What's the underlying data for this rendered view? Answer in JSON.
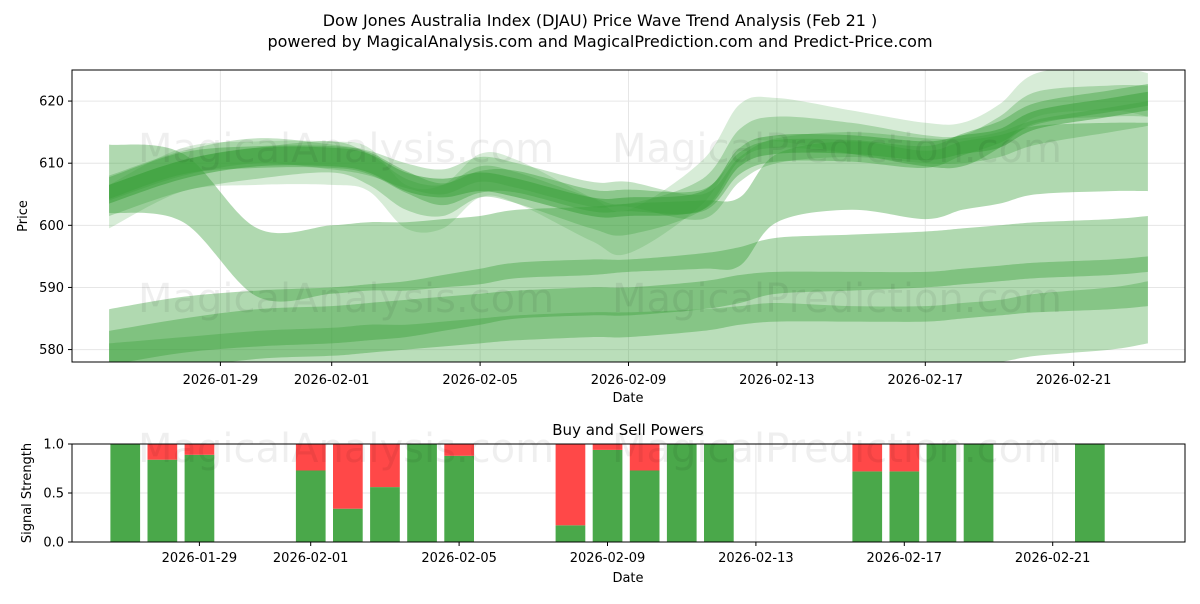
{
  "header": {
    "title_line1": "Dow Jones Australia Index (DJAU) Price Wave Trend Analysis (Feb 21 )",
    "title_line2": "powered by MagicalAnalysis.com and MagicalPrediction.com and Predict-Price.com"
  },
  "watermark": {
    "left": "MagicalAnalysis.com",
    "right": "MagicalPrediction.com"
  },
  "colors": {
    "green": "#4aa84a",
    "red": "#ff4848",
    "band": "#39a039"
  },
  "chart_data": [
    {
      "type": "area",
      "name": "price-wave-chart",
      "xlabel": "Date",
      "ylabel": "Price",
      "ylim": [
        578,
        625
      ],
      "xlim": [
        "2026-01-25",
        "2026-02-24"
      ],
      "grid": true,
      "x_ticks": [
        "2026-01-29",
        "2026-02-01",
        "2026-02-05",
        "2026-02-09",
        "2026-02-13",
        "2026-02-17",
        "2026-02-21"
      ],
      "y_ticks": [
        580,
        590,
        600,
        610,
        620
      ],
      "dates": [
        "2026-01-26",
        "2026-01-28",
        "2026-01-30",
        "2026-02-01",
        "2026-02-02",
        "2026-02-03",
        "2026-02-04",
        "2026-02-05",
        "2026-02-06",
        "2026-02-08",
        "2026-02-09",
        "2026-02-11",
        "2026-02-12",
        "2026-02-13",
        "2026-02-15",
        "2026-02-17",
        "2026-02-18",
        "2026-02-19",
        "2026-02-20",
        "2026-02-22",
        "2026-02-23"
      ],
      "bands": [
        {
          "name": "wave-1",
          "center": [
            605,
            609,
            611,
            611,
            610,
            607,
            606,
            607,
            606,
            603,
            603,
            604,
            611,
            613,
            613,
            612,
            613,
            614,
            617,
            619,
            620
          ],
          "width": 3.0,
          "opacity": 0.5
        },
        {
          "name": "wave-2",
          "center": [
            606,
            610,
            611,
            611,
            610,
            607,
            605,
            607,
            607,
            604,
            604,
            604,
            610,
            612,
            612,
            611,
            613,
            615,
            618,
            620,
            621
          ],
          "width": 3.5,
          "opacity": 0.4
        },
        {
          "name": "wave-3",
          "center": [
            604,
            608,
            610,
            611,
            609,
            605,
            604,
            607,
            606,
            602,
            601,
            605,
            613,
            615,
            614,
            612,
            612,
            615,
            619,
            620,
            620
          ],
          "width": 5.0,
          "opacity": 0.3
        },
        {
          "name": "wave-4",
          "center": [
            603,
            609,
            610,
            610,
            609,
            603,
            603,
            608,
            607,
            601,
            599,
            607,
            616,
            617,
            615,
            613,
            613,
            616,
            621,
            622,
            621
          ],
          "width": 7.0,
          "opacity": 0.2
        },
        {
          "name": "wave-5",
          "center": [
            606,
            610,
            612,
            611,
            610,
            608,
            607,
            609,
            608,
            605,
            605,
            603,
            609,
            612,
            613,
            612,
            612,
            613,
            615,
            617,
            618
          ],
          "width": 4.0,
          "opacity": 0.3
        },
        {
          "name": "long-wave-upper",
          "center": [
            607.5,
            606,
            594,
            594.5,
            595,
            595,
            595.5,
            596,
            597,
            597.5,
            598,
            598.5,
            599,
            606,
            608,
            606.5,
            608,
            609,
            610.5,
            611,
            611
          ],
          "width": 11.0,
          "opacity": 0.4
        },
        {
          "name": "long-wave-middle",
          "center": [
            582,
            584,
            585,
            585.5,
            586,
            586.5,
            587.5,
            588.5,
            589.5,
            590,
            590,
            591,
            592,
            593.5,
            594,
            594.5,
            595,
            595.5,
            596,
            596.5,
            597
          ],
          "width": 9.0,
          "opacity": 0.4
        },
        {
          "name": "long-wave-lower",
          "center": [
            579,
            581,
            582.5,
            583,
            583.5,
            584,
            584.5,
            585,
            585.5,
            586,
            586,
            587,
            588,
            588.5,
            588.5,
            588.5,
            589,
            589.5,
            590,
            590.5,
            591
          ],
          "width": 8.0,
          "opacity": 0.4
        },
        {
          "name": "long-wave-lowest",
          "center": [
            576,
            577,
            578,
            578.5,
            579,
            579,
            579.5,
            580,
            580.5,
            581,
            581,
            581.5,
            582,
            582.5,
            582,
            582,
            582.5,
            583,
            584,
            585,
            586
          ],
          "width": 10.0,
          "opacity": 0.35
        }
      ]
    },
    {
      "type": "bar",
      "name": "buy-sell-powers-chart",
      "title": "Buy and Sell Powers",
      "xlabel": "Date",
      "ylabel": "Signal Strength",
      "ylim": [
        0,
        1
      ],
      "xlim": [
        "2026-01-25",
        "2026-02-24"
      ],
      "grid": true,
      "x_ticks": [
        "2026-01-29",
        "2026-02-01",
        "2026-02-05",
        "2026-02-09",
        "2026-02-13",
        "2026-02-17",
        "2026-02-21"
      ],
      "y_ticks": [
        "0.0",
        "0.5",
        "1.0"
      ],
      "series": [
        {
          "name": "Buy",
          "color": "#4aa84a"
        },
        {
          "name": "Sell",
          "color": "#ff4848"
        }
      ],
      "bars": [
        {
          "date": "2026-01-27",
          "buy": 1.0,
          "sell": 0.0
        },
        {
          "date": "2026-01-28",
          "buy": 0.84,
          "sell": 0.16
        },
        {
          "date": "2026-01-29",
          "buy": 0.89,
          "sell": 0.11
        },
        {
          "date": "2026-02-01",
          "buy": 0.73,
          "sell": 0.27
        },
        {
          "date": "2026-02-02",
          "buy": 0.34,
          "sell": 0.66
        },
        {
          "date": "2026-02-03",
          "buy": 0.56,
          "sell": 0.44
        },
        {
          "date": "2026-02-04",
          "buy": 1.0,
          "sell": 0.0
        },
        {
          "date": "2026-02-05",
          "buy": 0.88,
          "sell": 0.12
        },
        {
          "date": "2026-02-08",
          "buy": 0.17,
          "sell": 0.83
        },
        {
          "date": "2026-02-09",
          "buy": 0.94,
          "sell": 0.06
        },
        {
          "date": "2026-02-10",
          "buy": 0.73,
          "sell": 0.27
        },
        {
          "date": "2026-02-11",
          "buy": 1.0,
          "sell": 0.0
        },
        {
          "date": "2026-02-12",
          "buy": 1.0,
          "sell": 0.0
        },
        {
          "date": "2026-02-16",
          "buy": 0.72,
          "sell": 0.28
        },
        {
          "date": "2026-02-17",
          "buy": 0.72,
          "sell": 0.28
        },
        {
          "date": "2026-02-18",
          "buy": 1.0,
          "sell": 0.0
        },
        {
          "date": "2026-02-19",
          "buy": 1.0,
          "sell": 0.0
        },
        {
          "date": "2026-02-22",
          "buy": 1.0,
          "sell": 0.0
        }
      ]
    }
  ]
}
